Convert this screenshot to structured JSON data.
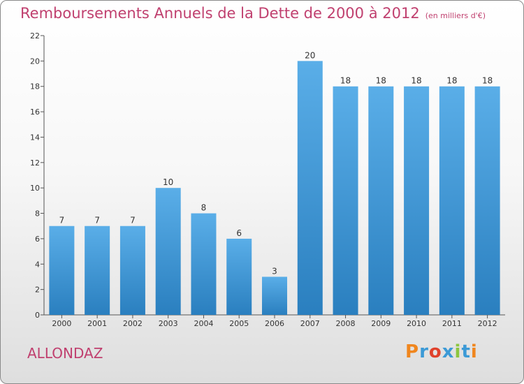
{
  "header": {
    "title": "Remboursements Annuels de la Dette de 2000 à 2012",
    "subtitle": "(en milliers d'€)"
  },
  "footer": {
    "commune": "ALLONDAZ",
    "logo_text": "Proxiti",
    "logo_letters": [
      {
        "ch": "P",
        "color": "#f0861e"
      },
      {
        "ch": "r",
        "color": "#3c9ad6"
      },
      {
        "ch": "o",
        "color": "#e0412b"
      },
      {
        "ch": "x",
        "color": "#3c9ad6"
      },
      {
        "ch": "i",
        "color": "#8cc63f"
      },
      {
        "ch": "t",
        "color": "#3c9ad6"
      },
      {
        "ch": "i",
        "color": "#f0861e"
      }
    ]
  },
  "chart_data": {
    "type": "bar",
    "title": "Remboursements Annuels de la Dette de 2000 à 2012",
    "subtitle": "(en milliers d'€)",
    "xlabel": "",
    "ylabel": "",
    "categories": [
      "2000",
      "2001",
      "2002",
      "2003",
      "2004",
      "2005",
      "2006",
      "2007",
      "2008",
      "2009",
      "2010",
      "2011",
      "2012"
    ],
    "values": [
      7,
      7,
      7,
      10,
      8,
      6,
      3,
      20,
      18,
      18,
      18,
      18,
      18
    ],
    "value_labels": [
      "7",
      "7",
      "7",
      "10",
      "8",
      "6",
      "3",
      "20",
      "18",
      "18",
      "18",
      "18",
      "18"
    ],
    "ylim": [
      0,
      22
    ],
    "yticks": [
      "0",
      "2",
      "4",
      "6",
      "8",
      "10",
      "12",
      "14",
      "16",
      "18",
      "20",
      "22"
    ],
    "grid": false,
    "legend": "none",
    "bar_color_top": "#5aaee8",
    "bar_color_bottom": "#2a7fbf"
  }
}
